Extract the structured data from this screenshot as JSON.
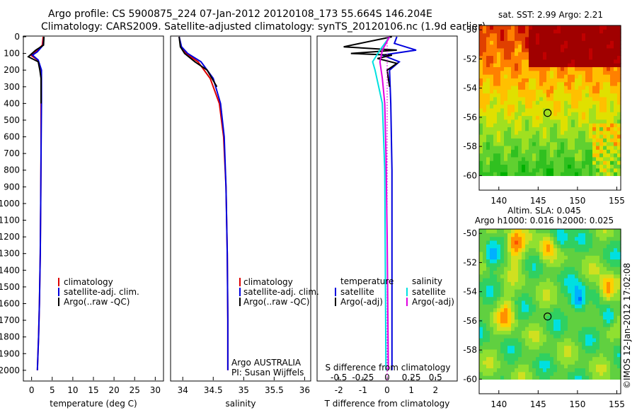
{
  "header": {
    "line1": "Argo profile: CS 5900875_224 07-Jan-2012 20120108_173 55.664S 146.204E",
    "line2": "Climatology: CARS2009. Satellite-adjusted climatology: synTS_20120106.nc (1.9d earlier)"
  },
  "colors": {
    "climatology": "#dd0000",
    "satellite": "#0000dd",
    "argo": "#000000",
    "s_satellite": "#00e0e0",
    "s_argo": "#e000e0"
  },
  "chart_data": [
    {
      "type": "line",
      "panel": "temperature",
      "xlabel": "temperature (deg C)",
      "xticks": [
        "0",
        "5",
        "10",
        "15",
        "20",
        "25",
        "30"
      ],
      "xlim": [
        -2,
        32
      ],
      "ylim": [
        2060,
        0
      ],
      "yticks": [
        "0",
        "100",
        "200",
        "300",
        "400",
        "500",
        "600",
        "700",
        "800",
        "900",
        "1000",
        "1100",
        "1200",
        "1300",
        "1400",
        "1500",
        "1600",
        "1700",
        "1800",
        "1900",
        "2000"
      ],
      "legend": [
        "climatology",
        "satellite-adj. clim.",
        "Argo(..raw -QC)"
      ],
      "series": [
        {
          "name": "climatology",
          "x": [
            2.8,
            2.6,
            1.0,
            -0.2,
            1.5,
            2.3,
            2.3,
            2.3,
            2.2,
            2.1,
            1.9,
            1.7,
            1.4
          ],
          "y": [
            0,
            50,
            90,
            110,
            140,
            200,
            400,
            700,
            1000,
            1300,
            1600,
            1800,
            2000
          ]
        },
        {
          "name": "satellite-adj. clim.",
          "x": [
            3.0,
            2.8,
            1.4,
            0.2,
            1.6,
            2.4,
            2.4,
            2.3,
            2.2,
            2.1,
            1.9,
            1.7,
            1.4
          ],
          "y": [
            0,
            50,
            90,
            110,
            140,
            200,
            400,
            700,
            1000,
            1300,
            1600,
            1800,
            2000
          ]
        },
        {
          "name": "Argo(..raw -QC)",
          "x": [
            3.0,
            2.9,
            1.0,
            -0.8,
            1.6,
            2.0,
            2.3,
            2.3,
            2.3
          ],
          "y": [
            0,
            50,
            80,
            120,
            150,
            200,
            250,
            300,
            400
          ]
        }
      ]
    },
    {
      "type": "line",
      "panel": "salinity",
      "xlabel": "salinity",
      "xticks": [
        "34",
        "34.5",
        "35",
        "35.5",
        "36"
      ],
      "xlim": [
        33.8,
        36.1
      ],
      "legend": [
        "climatology",
        "satellite-adj. clim.",
        "Argo(..raw -QC)"
      ],
      "annotations": [
        "Argo AUSTRALIA",
        "PI: Susan Wijffels"
      ],
      "series": [
        {
          "name": "climatology",
          "x": [
            33.94,
            33.97,
            34.05,
            34.25,
            34.45,
            34.6,
            34.67,
            34.71,
            34.73,
            34.74,
            34.74
          ],
          "y": [
            0,
            60,
            100,
            150,
            250,
            400,
            600,
            900,
            1300,
            1700,
            2000
          ]
        },
        {
          "name": "satellite-adj. clim.",
          "x": [
            33.94,
            33.98,
            34.08,
            34.3,
            34.5,
            34.62,
            34.68,
            34.71,
            34.73,
            34.74,
            34.74
          ],
          "y": [
            0,
            60,
            100,
            150,
            250,
            400,
            600,
            900,
            1300,
            1700,
            2000
          ]
        },
        {
          "name": "Argo(..raw -QC)",
          "x": [
            33.94,
            33.96,
            34.03,
            34.2,
            34.4,
            34.56
          ],
          "y": [
            0,
            60,
            100,
            150,
            200,
            300
          ]
        }
      ]
    },
    {
      "type": "line",
      "panel": "difference",
      "xlabel": "T difference from climatology",
      "secondary_xlabel": "S difference from climatology",
      "xticks": [
        "-2",
        "-1",
        "0",
        "1",
        "2"
      ],
      "secondary_xticks": [
        "-0.5",
        "-0.25",
        "0",
        "0.25",
        "0.5"
      ],
      "xlim": [
        -2.9,
        2.9
      ],
      "legend_temperature": [
        "temperature",
        "satellite",
        "Argo(-adj)"
      ],
      "legend_salinity": [
        "salinity",
        "satellite",
        "Argo(-adj)"
      ],
      "series": [
        {
          "name": "T satellite",
          "x": [
            0.4,
            0.3,
            1.2,
            -0.2,
            0.5,
            0.1,
            0.15,
            0.2,
            0.2,
            0.2
          ],
          "y": [
            0,
            40,
            80,
            110,
            150,
            200,
            400,
            800,
            1500,
            2000
          ]
        },
        {
          "name": "T Argo(-adj)",
          "x": [
            0.2,
            -1.8,
            0.4,
            -1.5,
            0.2,
            -0.4,
            0.4,
            0.0,
            0.1
          ],
          "y": [
            0,
            60,
            80,
            100,
            110,
            130,
            160,
            200,
            300
          ]
        },
        {
          "name": "S satellite",
          "x": [
            0.1,
            -0.3,
            -0.6,
            -0.5,
            -0.2,
            -0.1,
            -0.05
          ],
          "y": [
            0,
            80,
            150,
            200,
            400,
            800,
            2000
          ]
        },
        {
          "name": "S Argo(-adj)",
          "x": [
            0.1,
            -0.2,
            -0.3,
            -0.2,
            -0.1,
            -0.05,
            0.0,
            0.05
          ],
          "y": [
            0,
            80,
            150,
            250,
            400,
            700,
            1200,
            2000
          ]
        }
      ]
    },
    {
      "type": "heatmap",
      "panel": "sst",
      "title": "sat. SST: 2.99 Argo: 2.21",
      "xticks": [
        "140",
        "145",
        "150",
        "155"
      ],
      "yticks": [
        "-50",
        "-52",
        "-54",
        "-56",
        "-58",
        "-60"
      ],
      "xlim": [
        137.5,
        155.5
      ],
      "ylim": [
        -61,
        -49.7
      ],
      "marker": {
        "lon": 146.2,
        "lat": -55.7
      }
    },
    {
      "type": "heatmap",
      "panel": "sla",
      "title": "Altim. SLA: 0.045",
      "subtitle": "Argo h1000: 0.016 h2000: 0.025",
      "xticks": [
        "140",
        "145",
        "150",
        "155"
      ],
      "yticks": [
        "-50",
        "-52",
        "-54",
        "-56",
        "-58",
        "-60"
      ],
      "xlim": [
        137.5,
        155.5
      ],
      "ylim": [
        -61,
        -49.7
      ],
      "marker": {
        "lon": 146.2,
        "lat": -55.7
      }
    }
  ],
  "footer": {
    "credit": "©IMOS 12-Jan-2012 17:02:08"
  }
}
